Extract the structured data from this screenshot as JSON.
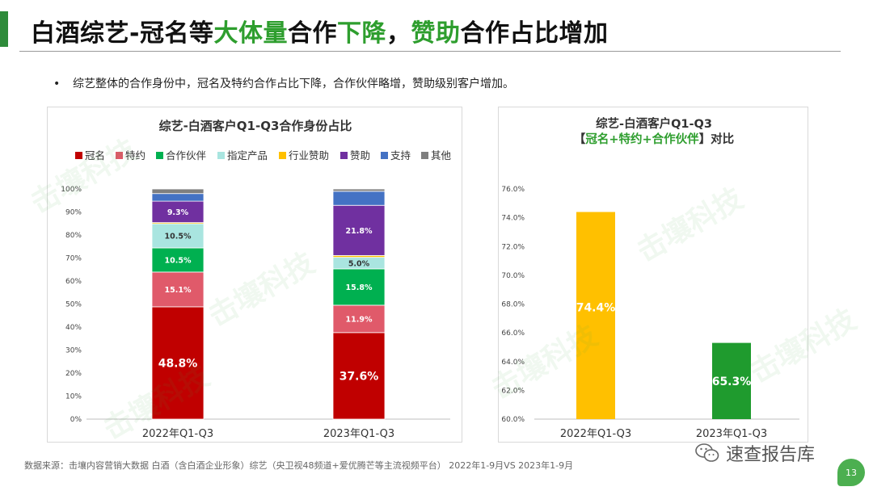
{
  "header": {
    "title_parts": [
      "白酒综艺-冠名等",
      "大体量",
      "合作",
      "下降",
      "，",
      "赞助",
      "合作占比增加"
    ]
  },
  "bullet": "综艺整体的合作身份中，冠名及特约合作占比下降，合作伙伴略增，赞助级别客户增加。",
  "watermark": "击壤科技",
  "footer": "数据来源：击壤内容营销大数据    白酒（含白酒企业形象）综艺（央卫视48频道+爱优腾芒等主流视频平台） 2022年1-9月VS 2023年1-9月",
  "wechat": {
    "name": "速查报告库",
    "icon": "wechat-icon"
  },
  "page_number": "13",
  "colors": {
    "accent": "#2e8b3a",
    "highlight": "#2e9e2e"
  },
  "chart_data": [
    {
      "type": "bar",
      "stacked": true,
      "title": "综艺-白酒客户Q1-Q3合作身份占比",
      "categories": [
        "2022年Q1-Q3",
        "2023年Q1-Q3"
      ],
      "ylim": [
        0,
        100
      ],
      "yticks": [
        "0%",
        "10%",
        "20%",
        "30%",
        "40%",
        "50%",
        "60%",
        "70%",
        "80%",
        "90%",
        "100%"
      ],
      "legend_position": "top",
      "series": [
        {
          "name": "冠名",
          "color": "#c00000",
          "values": [
            48.8,
            37.6
          ],
          "labels": [
            "48.8%",
            "37.6%"
          ]
        },
        {
          "name": "特约",
          "color": "#e05a6a",
          "values": [
            15.1,
            11.9
          ],
          "labels": [
            "15.1%",
            "11.9%"
          ]
        },
        {
          "name": "合作伙伴",
          "color": "#00b050",
          "values": [
            10.5,
            15.8
          ],
          "labels": [
            "10.5%",
            "15.8%"
          ]
        },
        {
          "name": "指定产品",
          "color": "#a9e5e0",
          "values": [
            10.5,
            5.0
          ],
          "labels": [
            "10.5%",
            "5.0%"
          ]
        },
        {
          "name": "行业赞助",
          "color": "#ffc000",
          "values": [
            0.5,
            0.8
          ],
          "labels": [
            "",
            ""
          ]
        },
        {
          "name": "赞助",
          "color": "#7030a0",
          "values": [
            9.3,
            21.8
          ],
          "labels": [
            "9.3%",
            "21.8%"
          ]
        },
        {
          "name": "支持",
          "color": "#4472c4",
          "values": [
            3.3,
            6.1
          ],
          "labels": [
            "",
            ""
          ]
        },
        {
          "name": "其他",
          "color": "#7f7f7f",
          "values": [
            2.0,
            1.0
          ],
          "labels": [
            "",
            ""
          ]
        }
      ]
    },
    {
      "type": "bar",
      "title_line1": "综艺-白酒客户Q1-Q3",
      "title_line2_parts": [
        "【",
        "冠名+特约+合作伙伴",
        "】对比"
      ],
      "categories": [
        "2022年Q1-Q3",
        "2023年Q1-Q3"
      ],
      "values": [
        74.4,
        65.3
      ],
      "labels": [
        "74.4%",
        "65.3%"
      ],
      "colors": [
        "#ffc000",
        "#1f9b2e"
      ],
      "ylim": [
        60,
        76
      ],
      "yticks": [
        "60.0%",
        "62.0%",
        "64.0%",
        "66.0%",
        "68.0%",
        "70.0%",
        "72.0%",
        "74.0%",
        "76.0%"
      ]
    }
  ]
}
